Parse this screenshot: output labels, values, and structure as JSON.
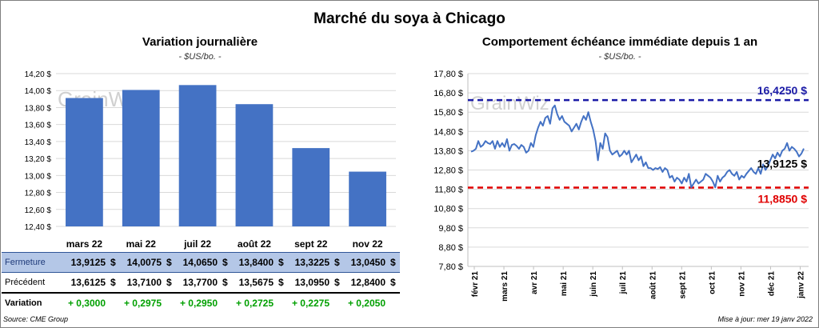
{
  "main_title": "Marché du soya à Chicago",
  "left": {
    "title": "Variation  journalière",
    "unit": "- $US/bo. -"
  },
  "right": {
    "title": "Comportement  échéance immédiate depuis 1 an",
    "unit": "- $US/bo. -"
  },
  "table": {
    "rows": [
      {
        "label": "Fermeture",
        "values": [
          "13,9125",
          "14,0075",
          "14,0650",
          "13,8400",
          "13,3225",
          "13,0450"
        ],
        "suffix": "$"
      },
      {
        "label": "Précédent",
        "values": [
          "13,6125",
          "13,7100",
          "13,7700",
          "13,5675",
          "13,0950",
          "12,8400"
        ],
        "suffix": "$"
      },
      {
        "label": "Variation",
        "values": [
          "+ 0,3000",
          "+ 0,2975",
          "+ 0,2950",
          "+ 0,2725",
          "+ 0,2275",
          "+ 0,2050"
        ],
        "suffix": ""
      }
    ]
  },
  "source": "Source: CME Group",
  "updated": "Mise à jour: mer 19 janv 2022",
  "watermark": "GrainWiz",
  "colors": {
    "bar": "#4472c4",
    "line": "#4472c4",
    "high": "#1a1aa6",
    "low": "#e00000",
    "table_header_bg": "#b4c7e7",
    "gain": "#00a000"
  },
  "chart_data": [
    {
      "type": "bar",
      "categories": [
        "mars 22",
        "mai 22",
        "juil 22",
        "août 22",
        "sept 22",
        "nov 22"
      ],
      "values": [
        13.9125,
        14.0075,
        14.065,
        13.84,
        13.3225,
        13.045
      ],
      "ylim": [
        12.4,
        14.2
      ],
      "yticks": [
        "14,20 $",
        "14,00 $",
        "13,80 $",
        "13,60 $",
        "13,40 $",
        "13,20 $",
        "13,00 $",
        "12,80 $",
        "12,60 $",
        "12,40 $"
      ],
      "ytick_values": [
        14.2,
        14.0,
        13.8,
        13.6,
        13.4,
        13.2,
        13.0,
        12.8,
        12.6,
        12.4
      ],
      "grid": true
    },
    {
      "type": "line",
      "x_labels": [
        "févr 21",
        "mars 21",
        "avr 21",
        "mai 21",
        "juin 21",
        "juil 21",
        "août 21",
        "sept 21",
        "oct 21",
        "nov 21",
        "déc 21",
        "janv 22"
      ],
      "ylim": [
        7.8,
        17.8
      ],
      "yticks": [
        "17,80 $",
        "16,80 $",
        "15,80 $",
        "14,80 $",
        "13,80 $",
        "12,80 $",
        "11,80 $",
        "10,80 $",
        "9,80 $",
        "8,80 $",
        "7,80 $"
      ],
      "ytick_values": [
        17.8,
        16.8,
        15.8,
        14.8,
        13.8,
        12.8,
        11.8,
        10.8,
        9.8,
        8.8,
        7.8
      ],
      "series": [
        {
          "values": [
            13.75,
            13.8,
            13.9,
            14.3,
            14.0,
            14.1,
            14.3,
            14.2,
            14.15,
            14.3,
            13.9,
            14.3,
            14.0,
            14.2,
            14.0,
            14.4,
            13.8,
            14.1,
            14.15,
            14.05,
            13.9,
            14.1,
            14.0,
            13.7,
            13.8,
            14.2,
            14.0,
            14.6,
            15.0,
            15.3,
            15.1,
            15.5,
            15.6,
            15.2,
            16.0,
            16.15,
            15.7,
            15.4,
            15.6,
            15.3,
            15.2,
            15.1,
            14.8,
            15.0,
            15.2,
            14.9,
            15.3,
            15.6,
            15.4,
            15.8,
            15.3,
            14.9,
            14.3,
            13.3,
            14.2,
            13.9,
            14.7,
            14.5,
            13.8,
            13.6,
            13.7,
            13.8,
            13.5,
            13.6,
            13.8,
            13.6,
            13.8,
            13.2,
            13.4,
            13.6,
            13.3,
            13.5,
            13.0,
            13.2,
            12.9,
            12.9,
            12.8,
            12.9,
            12.85,
            12.95,
            12.7,
            12.9,
            12.8,
            12.4,
            12.5,
            12.2,
            12.4,
            12.3,
            12.1,
            12.4,
            12.2,
            12.6,
            11.9,
            12.1,
            12.3,
            12.1,
            12.2,
            12.3,
            12.6,
            12.5,
            12.4,
            12.2,
            11.9,
            12.5,
            12.2,
            12.4,
            12.5,
            12.7,
            12.8,
            12.6,
            12.5,
            12.7,
            12.3,
            12.5,
            12.4,
            12.6,
            12.75,
            12.9,
            12.7,
            12.6,
            12.9,
            12.6,
            13.1,
            12.8,
            13.0,
            13.3,
            13.6,
            13.4,
            13.7,
            13.5,
            13.8,
            13.9,
            14.2,
            13.8,
            14.0,
            13.9,
            13.75,
            13.5,
            13.65,
            13.9125
          ]
        }
      ],
      "annotations": {
        "high": {
          "value": 16.425,
          "label": "16,4250 $"
        },
        "low": {
          "value": 11.885,
          "label": "11,8850 $"
        },
        "last": {
          "value": 13.9125,
          "label": "13,9125 $"
        }
      },
      "grid": true
    }
  ]
}
